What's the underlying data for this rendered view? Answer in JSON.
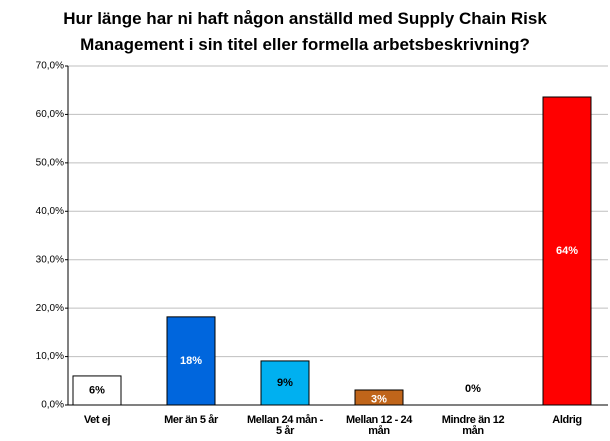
{
  "chart_data": {
    "type": "bar",
    "title": "Hur länge har ni haft någon anställd med Supply Chain Risk\nManagement i sin titel eller formella arbetsbeskrivning?",
    "categories": [
      "Vet ej",
      "Mer än 5 år",
      "Mellan 24 mån -\n5 år",
      "Mellan 12 - 24\nmån",
      "Mindre än 12\nmån",
      "Aldrig"
    ],
    "values": [
      6,
      18.2,
      9.1,
      3.1,
      0,
      63.6
    ],
    "value_labels": [
      "6%",
      "18%",
      "9%",
      "3%",
      "0%",
      "64%"
    ],
    "colors": [
      "#ffffff",
      "#0066dd",
      "#00b0f0",
      "#c0651a",
      "#ffffff",
      "#ff0000"
    ],
    "label_colors": [
      "#000000",
      "#ffffff",
      "#000000",
      "#ffffff",
      "#000000",
      "#ffffff"
    ],
    "ylim": [
      0,
      70
    ],
    "yticks": [
      {
        "value": 0,
        "label": "0,0%"
      },
      {
        "value": 10,
        "label": "10,0%"
      },
      {
        "value": 20,
        "label": "20,0%"
      },
      {
        "value": 30,
        "label": "30,0%"
      },
      {
        "value": 40,
        "label": "40,0%"
      },
      {
        "value": 50,
        "label": "50,0%"
      },
      {
        "value": 60,
        "label": "60,0%"
      },
      {
        "value": 70,
        "label": "70,0%"
      }
    ],
    "grid": true
  }
}
